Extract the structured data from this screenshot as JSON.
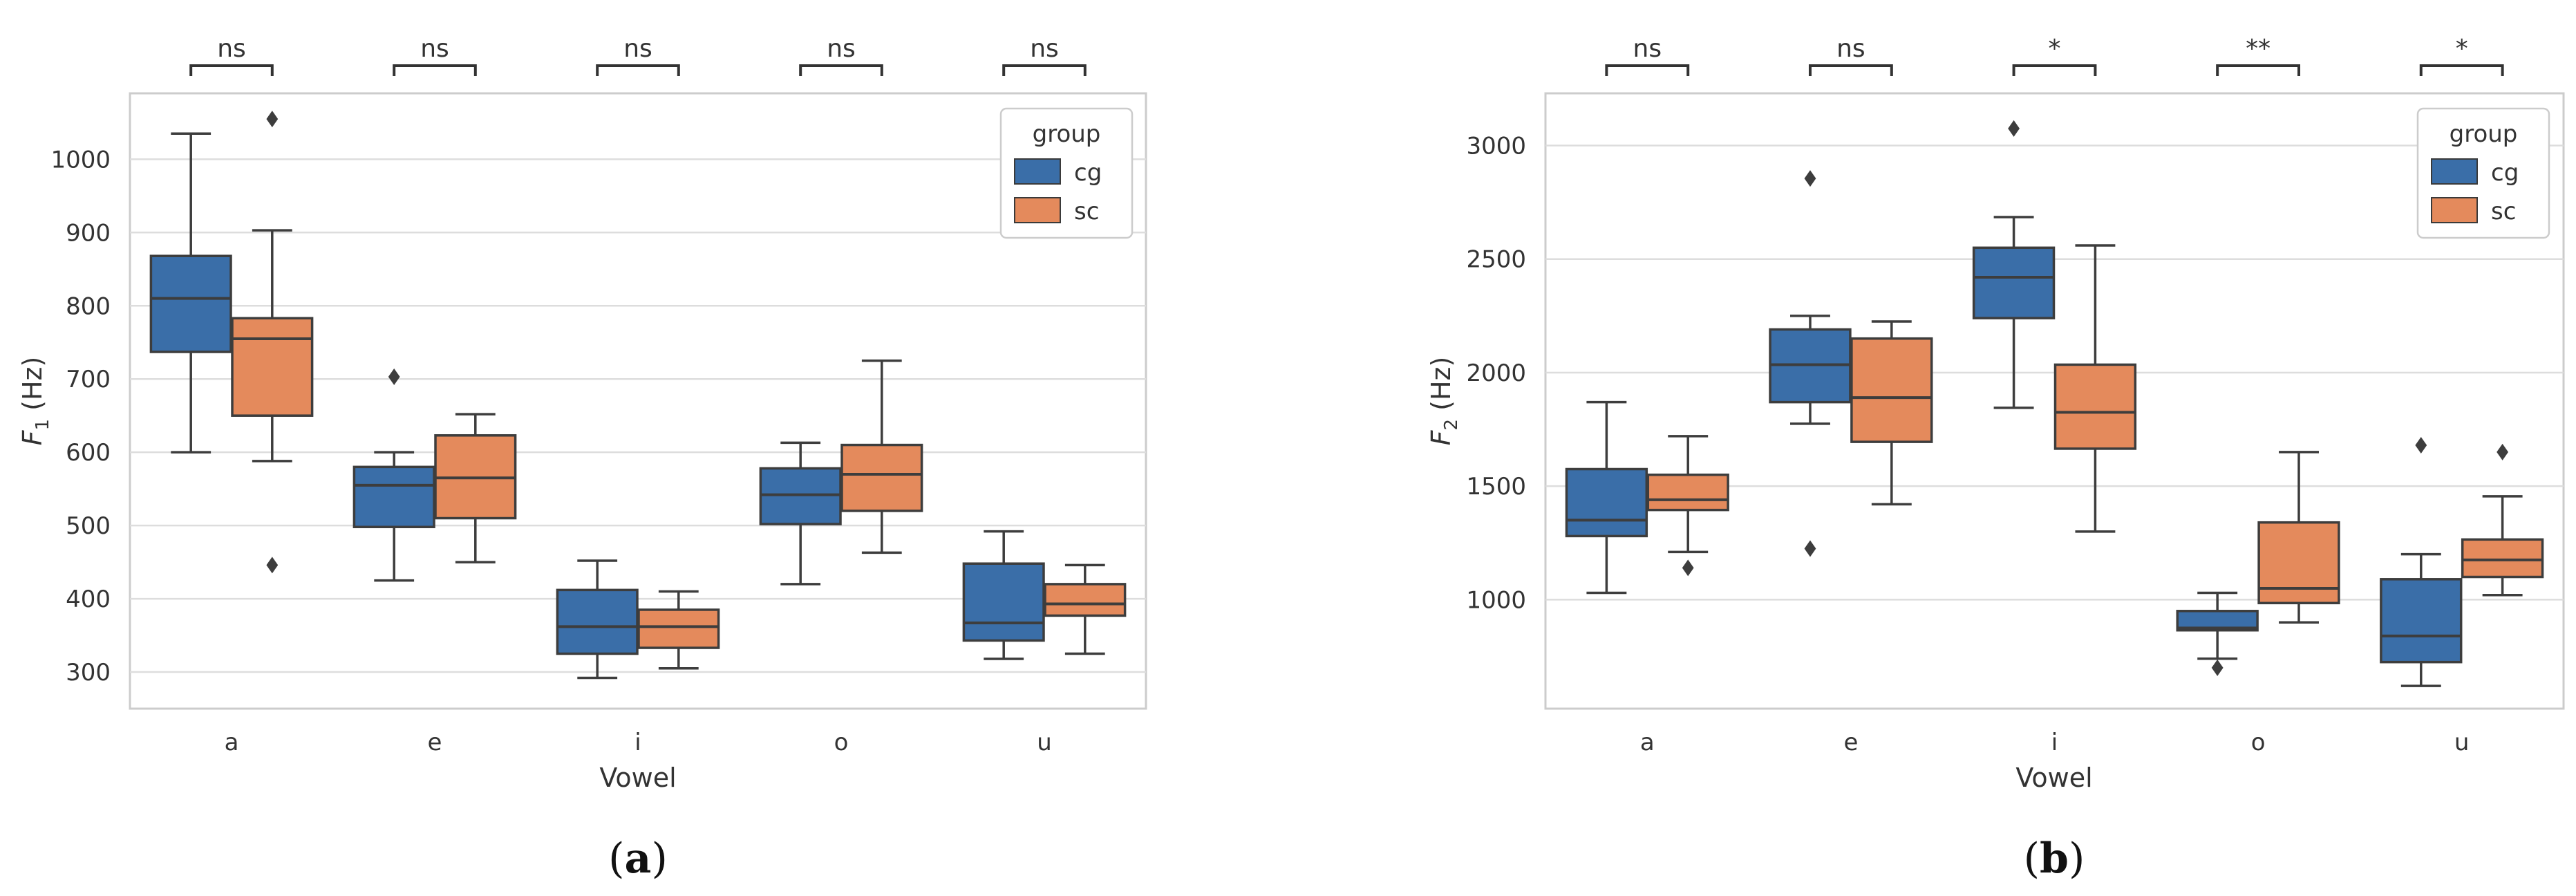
{
  "chart_data": [
    {
      "type": "box",
      "panel": "a",
      "caption_open": "(",
      "caption_letter": "a",
      "caption_close": ")",
      "xlabel": "Vowel",
      "ylabel_main": "F",
      "ylabel_sub": "1",
      "ylabel_unit": " (Hz)",
      "ylim": [
        250,
        1090
      ],
      "yticks": [
        300,
        400,
        500,
        600,
        700,
        800,
        900,
        1000
      ],
      "categories": [
        "a",
        "e",
        "i",
        "o",
        "u"
      ],
      "legend": {
        "title": "group",
        "position": "upper-right",
        "entries": [
          "cg",
          "sc"
        ]
      },
      "significance": [
        "ns",
        "ns",
        "ns",
        "ns",
        "ns"
      ],
      "series": [
        {
          "name": "cg",
          "color": "#3a6ea8",
          "boxes": [
            {
              "whislo": 600,
              "q1": 737,
              "med": 810,
              "q3": 868,
              "whishi": 1035,
              "fliers": []
            },
            {
              "whislo": 425,
              "q1": 498,
              "med": 555,
              "q3": 580,
              "whishi": 600,
              "fliers": [
                703
              ]
            },
            {
              "whislo": 292,
              "q1": 325,
              "med": 362,
              "q3": 412,
              "whishi": 452,
              "fliers": []
            },
            {
              "whislo": 420,
              "q1": 502,
              "med": 542,
              "q3": 578,
              "whishi": 613,
              "fliers": []
            },
            {
              "whislo": 318,
              "q1": 343,
              "med": 367,
              "q3": 448,
              "whishi": 492,
              "fliers": []
            }
          ]
        },
        {
          "name": "sc",
          "color": "#e48a5c",
          "boxes": [
            {
              "whislo": 588,
              "q1": 650,
              "med": 755,
              "q3": 783,
              "whishi": 903,
              "fliers": [
                1055,
                446
              ]
            },
            {
              "whislo": 450,
              "q1": 510,
              "med": 565,
              "q3": 623,
              "whishi": 652,
              "fliers": []
            },
            {
              "whislo": 305,
              "q1": 333,
              "med": 362,
              "q3": 385,
              "whishi": 410,
              "fliers": []
            },
            {
              "whislo": 463,
              "q1": 520,
              "med": 570,
              "q3": 610,
              "whishi": 725,
              "fliers": []
            },
            {
              "whislo": 325,
              "q1": 377,
              "med": 393,
              "q3": 420,
              "whishi": 446,
              "fliers": []
            }
          ]
        }
      ]
    },
    {
      "type": "box",
      "panel": "b",
      "caption_open": "(",
      "caption_letter": "b",
      "caption_close": ")",
      "xlabel": "Vowel",
      "ylabel_main": "F",
      "ylabel_sub": "2",
      "ylabel_unit": " (Hz)",
      "ylim": [
        520,
        3230
      ],
      "yticks": [
        1000,
        1500,
        2000,
        2500,
        3000
      ],
      "categories": [
        "a",
        "e",
        "i",
        "o",
        "u"
      ],
      "legend": {
        "title": "group",
        "position": "upper-right",
        "entries": [
          "cg",
          "sc"
        ]
      },
      "significance": [
        "ns",
        "ns",
        "*",
        "**",
        "*"
      ],
      "series": [
        {
          "name": "cg",
          "color": "#3a6ea8",
          "boxes": [
            {
              "whislo": 1030,
              "q1": 1280,
              "med": 1350,
              "q3": 1575,
              "whishi": 1870,
              "fliers": []
            },
            {
              "whislo": 1775,
              "q1": 1870,
              "med": 2035,
              "q3": 2190,
              "whishi": 2250,
              "fliers": [
                2855,
                1225
              ]
            },
            {
              "whislo": 1845,
              "q1": 2240,
              "med": 2420,
              "q3": 2550,
              "whishi": 2685,
              "fliers": [
                3075
              ]
            },
            {
              "whislo": 740,
              "q1": 865,
              "med": 875,
              "q3": 950,
              "whishi": 1030,
              "fliers": [
                700
              ]
            },
            {
              "whislo": 620,
              "q1": 725,
              "med": 840,
              "q3": 1090,
              "whishi": 1200,
              "fliers": [
                1680
              ]
            }
          ]
        },
        {
          "name": "sc",
          "color": "#e48a5c",
          "boxes": [
            {
              "whislo": 1210,
              "q1": 1395,
              "med": 1440,
              "q3": 1550,
              "whishi": 1720,
              "fliers": [
                1140
              ]
            },
            {
              "whislo": 1420,
              "q1": 1695,
              "med": 1890,
              "q3": 2150,
              "whishi": 2225,
              "fliers": []
            },
            {
              "whislo": 1300,
              "q1": 1665,
              "med": 1825,
              "q3": 2035,
              "whishi": 2560,
              "fliers": []
            },
            {
              "whislo": 900,
              "q1": 985,
              "med": 1050,
              "q3": 1340,
              "whishi": 1650,
              "fliers": []
            },
            {
              "whislo": 1020,
              "q1": 1100,
              "med": 1175,
              "q3": 1265,
              "whishi": 1455,
              "fliers": [
                1650
              ]
            }
          ]
        }
      ]
    }
  ]
}
